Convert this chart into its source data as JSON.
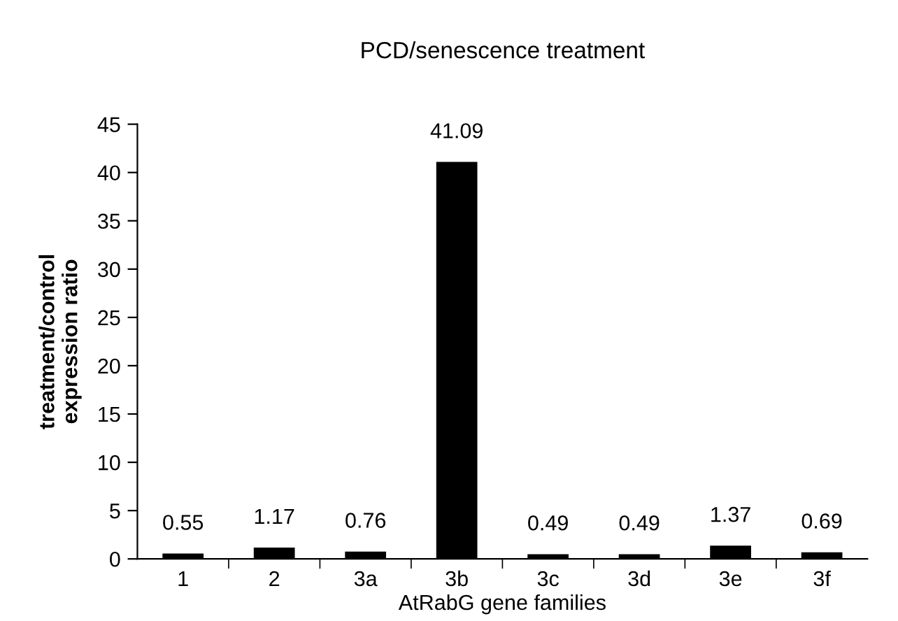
{
  "chart_data": {
    "type": "bar",
    "title": "PCD/senescence treatment",
    "xlabel": "AtRabG gene families",
    "ylabel": "treatment/control\nexpression ratio",
    "categories": [
      "1",
      "2",
      "3a",
      "3b",
      "3c",
      "3d",
      "3e",
      "3f"
    ],
    "values": [
      0.55,
      1.17,
      0.76,
      41.09,
      0.49,
      0.49,
      1.37,
      0.69
    ],
    "color": "#000000",
    "ylim": [
      0,
      45
    ],
    "yticks": [
      0,
      5,
      10,
      15,
      20,
      25,
      30,
      35,
      40,
      45
    ],
    "grid": false,
    "data_labels": true
  }
}
